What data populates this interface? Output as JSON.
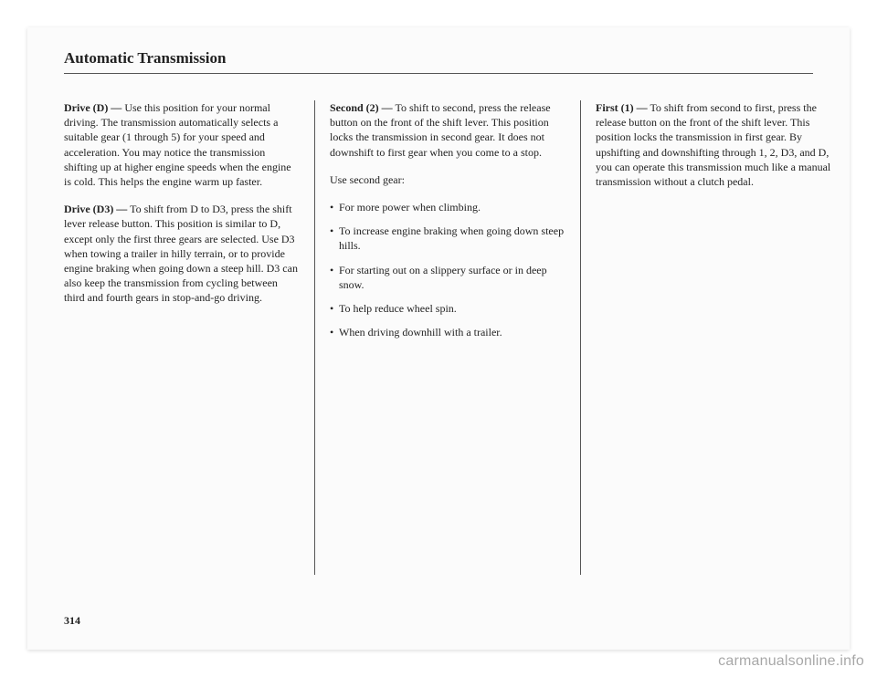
{
  "page": {
    "title": "Automatic Transmission",
    "number": "314",
    "watermark": "carmanualsonline.info",
    "title_fontsize_pt": 13,
    "body_fontsize_pt": 9,
    "font_family": "serif",
    "text_color": "#222222",
    "rule_color": "#555555",
    "background_color": "#fbfbfb",
    "columns": 3
  },
  "col1": {
    "p1_lead": "Drive (D) —",
    "p1_body": " Use this position for your normal driving. The transmission automatically selects a suitable gear (1 through 5) for your speed and acceleration. You may notice the transmission shifting up at higher engine speeds when the engine is cold. This helps the engine warm up faster.",
    "p2_lead": "Drive (D3) —",
    "p2_body": " To shift from D to D3, press the shift lever release button. This position is similar to D, except only the first three gears are selected. Use D3 when towing a trailer in hilly terrain, or to provide engine braking when going down a steep hill. D3 can also keep the transmission from cycling between third and fourth gears in stop-and-go driving."
  },
  "col2": {
    "p1_lead": "Second (2) —",
    "p1_body": " To shift to second, press the release button on the front of the shift lever. This position locks the transmission in second gear. It does not downshift to first gear when you come to a stop.",
    "p2": "Use second gear:",
    "bullets": [
      "For more power when climbing.",
      "To increase engine braking when going down steep hills.",
      "For starting out on a slippery surface or in deep snow.",
      "To help reduce wheel spin.",
      "When driving downhill with a trailer."
    ]
  },
  "col3": {
    "p1_lead": "First (1) —",
    "p1_body": " To shift from second to first, press the release button on the front of the shift lever. This position locks the transmission in first gear. By upshifting and downshifting through 1, 2, D3, and D, you can operate this transmission much like a manual transmission without a clutch pedal."
  }
}
